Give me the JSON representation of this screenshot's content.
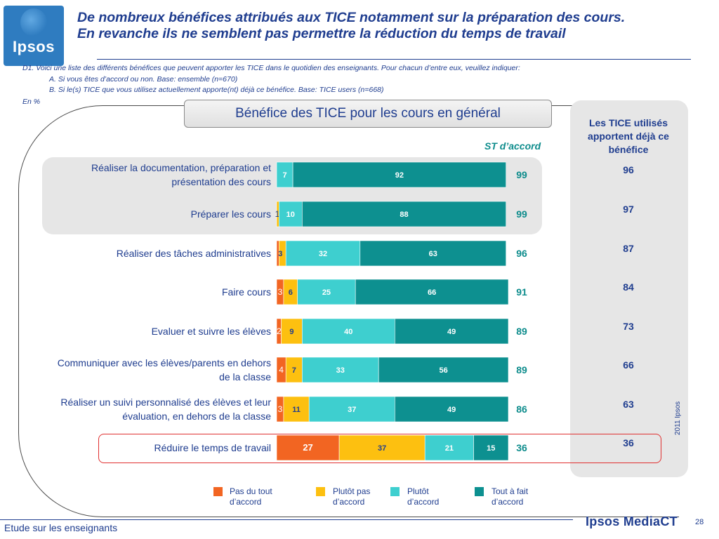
{
  "header": {
    "logo_text": "Ipsos",
    "title_line1": "De nombreux bénéfices attribués aux TICE notamment sur la préparation des cours.",
    "title_line2": "En revanche ils ne semblent pas permettre la réduction du temps de travail"
  },
  "question": {
    "line1": "D1. Voici une liste des différents bénéfices que peuvent apporter les TICE dans le quotidien des enseignants. Pour chacun d’entre eux, veuillez indiquer:",
    "line2": "A. Si vous êtes d’accord ou non. Base: ensemble (n=670)",
    "line3": "B. Si le(s) TICE que vous utilisez actuellement apporte(nt) déjà ce bénéfice. Base: TICE users (n=668)",
    "unit": "En %"
  },
  "panel": {
    "title": "Les TICE utilisés apportent déjà ce bénéfice"
  },
  "footer": {
    "study": "Etude sur les enseignants",
    "brand": "Ipsos MediaCT",
    "page": "28",
    "year": "2011 Ipsos"
  },
  "colors": {
    "pas_du_tout": "#f26522",
    "plutot_pas": "#fdc010",
    "plutot": "#3ecfcf",
    "tout_a_fait": "#0d9090",
    "text_blue": "#1f3d8f",
    "st_teal": "#0d8c8c",
    "highlight_red": "#e03030"
  },
  "chart_data": {
    "type": "bar",
    "orientation": "horizontal-stacked",
    "title": "Bénéfice des TICE pour les cours en général",
    "st_label": "ST d’accord",
    "categories": [
      "Réaliser la documentation, préparation et présentation des cours",
      "Préparer les cours",
      "Réaliser des tâches administratives",
      "Faire cours",
      "Evaluer et suivre les élèves",
      "Communiquer avec les élèves/parents en dehors de la classe",
      "Réaliser un suivi personnalisé des élèves et leur évaluation, en dehors de la classe",
      "Réduire le temps de travail"
    ],
    "category_lines": [
      [
        "Réaliser la documentation, préparation et",
        "présentation des cours"
      ],
      [
        "Préparer les cours"
      ],
      [
        "Réaliser des tâches administratives"
      ],
      [
        "Faire cours"
      ],
      [
        "Evaluer et suivre les élèves"
      ],
      [
        "Communiquer avec les élèves/parents en dehors",
        "de la classe"
      ],
      [
        "Réaliser un suivi personnalisé des élèves et leur",
        "évaluation, en dehors de la classe"
      ],
      [
        "Réduire le temps de travail"
      ]
    ],
    "series": [
      {
        "name": "Pas du tout d’accord",
        "values": [
          0,
          0,
          1,
          3,
          2,
          4,
          3,
          27
        ]
      },
      {
        "name": "Plutôt pas d’accord",
        "values": [
          0,
          1,
          3,
          6,
          9,
          7,
          11,
          37
        ]
      },
      {
        "name": "Plutôt d’accord",
        "values": [
          7,
          10,
          32,
          25,
          40,
          33,
          37,
          21
        ]
      },
      {
        "name": "Tout à fait d’accord",
        "values": [
          92,
          88,
          63,
          66,
          49,
          56,
          49,
          15
        ]
      }
    ],
    "segment_labels": [
      [
        "0",
        "",
        "7",
        "92"
      ],
      [
        "",
        "1",
        "10",
        "88"
      ],
      [
        "",
        "3",
        "32",
        "63"
      ],
      [
        "3",
        "6",
        "25",
        "66"
      ],
      [
        "2",
        "9",
        "40",
        "49"
      ],
      [
        "4",
        "7",
        "33",
        "56"
      ],
      [
        "3",
        "11",
        "37",
        "49"
      ],
      [
        "27",
        "37",
        "21",
        "15"
      ]
    ],
    "st_accord": [
      99,
      99,
      96,
      91,
      89,
      89,
      86,
      36
    ],
    "deja_benefice": [
      96,
      97,
      87,
      84,
      73,
      66,
      63,
      36
    ]
  }
}
